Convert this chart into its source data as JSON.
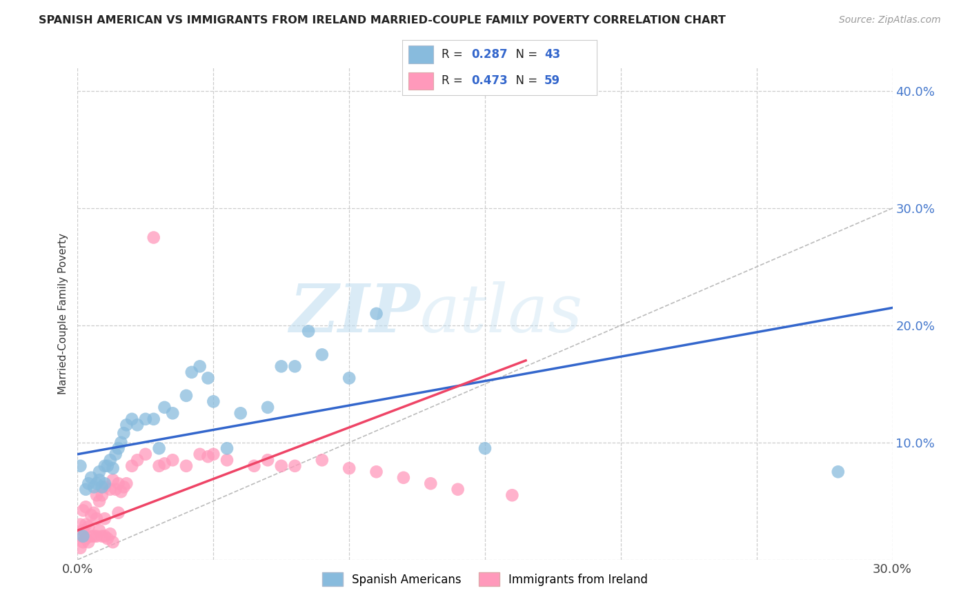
{
  "title": "SPANISH AMERICAN VS IMMIGRANTS FROM IRELAND MARRIED-COUPLE FAMILY POVERTY CORRELATION CHART",
  "source": "Source: ZipAtlas.com",
  "ylabel": "Married-Couple Family Poverty",
  "xlim": [
    0.0,
    0.3
  ],
  "ylim": [
    0.0,
    0.42
  ],
  "xticks": [
    0.0,
    0.05,
    0.1,
    0.15,
    0.2,
    0.25,
    0.3
  ],
  "yticks": [
    0.0,
    0.1,
    0.2,
    0.3,
    0.4
  ],
  "blue_color": "#88BBDD",
  "pink_color": "#FF99BB",
  "blue_line_color": "#3366CC",
  "pink_line_color": "#EE4466",
  "diagonal_color": "#BBBBBB",
  "background_color": "#FFFFFF",
  "grid_color": "#CCCCCC",
  "legend_R_blue": "0.287",
  "legend_N_blue": "43",
  "legend_R_pink": "0.473",
  "legend_N_pink": "59",
  "legend_label_blue": "Spanish Americans",
  "legend_label_pink": "Immigrants from Ireland",
  "watermark_zip": "ZIP",
  "watermark_atlas": "atlas",
  "blue_regline_x": [
    0.0,
    0.3
  ],
  "blue_regline_y": [
    0.09,
    0.215
  ],
  "pink_regline_x": [
    0.0,
    0.165
  ],
  "pink_regline_y": [
    0.025,
    0.17
  ],
  "blue_x": [
    0.001,
    0.002,
    0.003,
    0.004,
    0.005,
    0.006,
    0.007,
    0.008,
    0.008,
    0.009,
    0.01,
    0.01,
    0.011,
    0.012,
    0.013,
    0.014,
    0.015,
    0.016,
    0.017,
    0.018,
    0.02,
    0.022,
    0.025,
    0.028,
    0.03,
    0.032,
    0.035,
    0.04,
    0.042,
    0.045,
    0.048,
    0.05,
    0.055,
    0.06,
    0.07,
    0.075,
    0.08,
    0.085,
    0.09,
    0.1,
    0.11,
    0.15,
    0.28
  ],
  "blue_y": [
    0.08,
    0.02,
    0.06,
    0.065,
    0.07,
    0.062,
    0.065,
    0.068,
    0.075,
    0.062,
    0.08,
    0.065,
    0.08,
    0.085,
    0.078,
    0.09,
    0.095,
    0.1,
    0.108,
    0.115,
    0.12,
    0.115,
    0.12,
    0.12,
    0.095,
    0.13,
    0.125,
    0.14,
    0.16,
    0.165,
    0.155,
    0.135,
    0.095,
    0.125,
    0.13,
    0.165,
    0.165,
    0.195,
    0.175,
    0.155,
    0.21,
    0.095,
    0.075
  ],
  "pink_x": [
    0.001,
    0.001,
    0.001,
    0.002,
    0.002,
    0.002,
    0.003,
    0.003,
    0.003,
    0.004,
    0.004,
    0.005,
    0.005,
    0.006,
    0.006,
    0.007,
    0.007,
    0.007,
    0.008,
    0.008,
    0.009,
    0.009,
    0.01,
    0.01,
    0.01,
    0.011,
    0.012,
    0.012,
    0.013,
    0.013,
    0.014,
    0.015,
    0.015,
    0.016,
    0.017,
    0.018,
    0.02,
    0.022,
    0.025,
    0.028,
    0.03,
    0.032,
    0.035,
    0.04,
    0.045,
    0.048,
    0.05,
    0.055,
    0.065,
    0.07,
    0.075,
    0.08,
    0.09,
    0.1,
    0.11,
    0.12,
    0.13,
    0.14,
    0.16
  ],
  "pink_y": [
    0.01,
    0.02,
    0.03,
    0.015,
    0.025,
    0.042,
    0.018,
    0.03,
    0.045,
    0.015,
    0.028,
    0.02,
    0.038,
    0.02,
    0.04,
    0.02,
    0.035,
    0.055,
    0.025,
    0.05,
    0.02,
    0.055,
    0.02,
    0.035,
    0.062,
    0.018,
    0.022,
    0.06,
    0.015,
    0.068,
    0.06,
    0.04,
    0.065,
    0.058,
    0.062,
    0.065,
    0.08,
    0.085,
    0.09,
    0.275,
    0.08,
    0.082,
    0.085,
    0.08,
    0.09,
    0.088,
    0.09,
    0.085,
    0.08,
    0.085,
    0.08,
    0.08,
    0.085,
    0.078,
    0.075,
    0.07,
    0.065,
    0.06,
    0.055
  ]
}
